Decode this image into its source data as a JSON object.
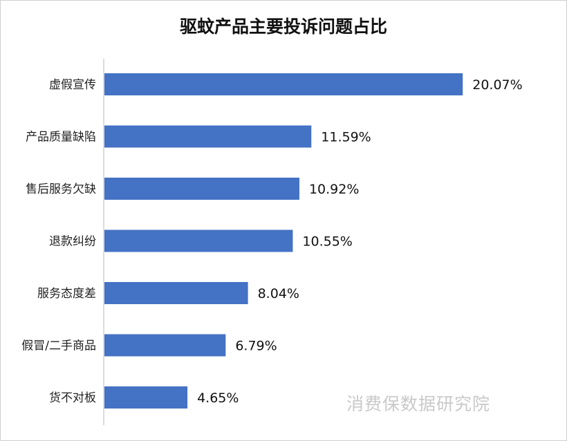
{
  "chart_data": {
    "type": "bar",
    "orientation": "horizontal",
    "title": "驱蚊产品主要投诉问题占比",
    "categories": [
      "虚假宣传",
      "产品质量缺陷",
      "售后服务欠缺",
      "退款纠纷",
      "服务态度差",
      "假冒/二手商品",
      "货不对板"
    ],
    "values": [
      20.07,
      11.59,
      10.92,
      10.55,
      8.04,
      6.79,
      4.65
    ],
    "value_labels": [
      "20.07%",
      "11.59%",
      "10.92%",
      "10.55%",
      "8.04%",
      "6.79%",
      "4.65%"
    ],
    "xlabel": "",
    "ylabel": "",
    "xlim": [
      0,
      21.3
    ],
    "grid": false,
    "legend": "none",
    "bar_color": "#4472C4"
  },
  "watermark": "消费保数据研究院"
}
